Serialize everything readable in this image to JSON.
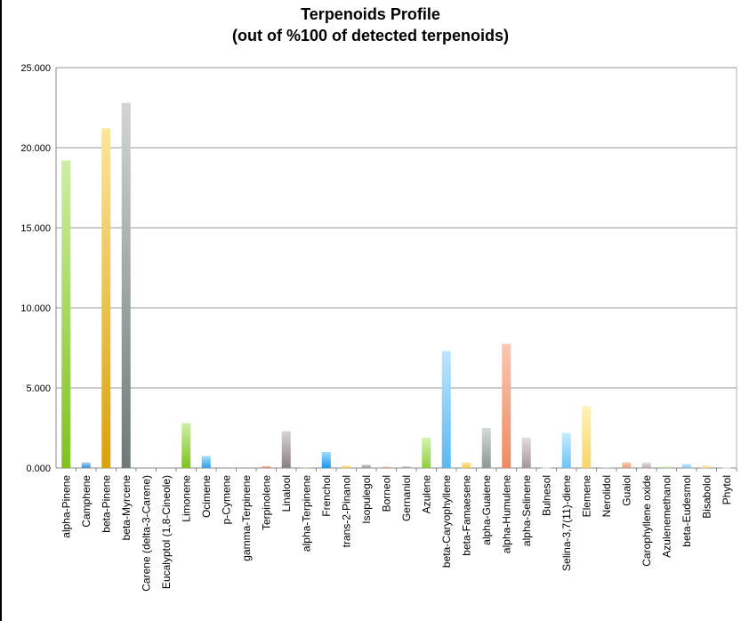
{
  "chart_data": {
    "type": "bar",
    "title_line1": "Terpenoids Profile",
    "title_line2": "(out of %100 of detected terpenoids)",
    "xlabel": "",
    "ylabel": "",
    "ylim": [
      0,
      25
    ],
    "yticks": [
      "0.000",
      "5.000",
      "10.000",
      "15.000",
      "20.000",
      "25.000"
    ],
    "grid": true,
    "legend": "none",
    "categories": [
      "alpha-Pinene",
      "Camphene",
      "beta-Pinene",
      "beta-Myrcene",
      "Carene (delta-3-Carene)",
      "Eucalyptol (1,8-Cineole)",
      "Limonene",
      "Ocimene",
      "p-Cymene",
      "gamma-Terpinene",
      "Terpinolene",
      "Linalool",
      "alpha-Terpinene",
      "Frenchol",
      "trans-2-Pinanol",
      "Isopulegol",
      "Borneol",
      "Gernaniol",
      "Azulene",
      "beta-Caryophyllene",
      "beta-Famaesene",
      "alpha-Guaiene",
      "alpha-Humulene",
      "alpha-Selinene",
      "Bulnesol",
      "Selina-3,7(11)-diene",
      "Elemene",
      "Nerolidol",
      "Guaiol",
      "Carophyllene oxide",
      "Azulenemethanol",
      "beta-Eudesmol",
      "Bisabolol",
      "Phytol"
    ],
    "values": [
      19.2,
      0.35,
      21.2,
      22.8,
      0,
      0,
      2.8,
      0.75,
      0,
      0,
      0.12,
      2.3,
      0.05,
      1.0,
      0.15,
      0.2,
      0.08,
      0.1,
      1.9,
      7.3,
      0.35,
      2.5,
      7.75,
      1.9,
      0.02,
      2.2,
      3.85,
      0.05,
      0.35,
      0.35,
      0.1,
      0.25,
      0.15,
      0.02
    ],
    "colors": [
      [
        "#cdeea5",
        "#7fc21f"
      ],
      [
        "#a9d6f5",
        "#3d8fcf"
      ],
      [
        "#fde49a",
        "#d9a20a"
      ],
      [
        "#d2d5d3",
        "#6f7a74"
      ],
      [
        "#ffffff",
        "#eeeeee"
      ],
      [
        "#ffffff",
        "#eeeeee"
      ],
      [
        "#cdeea5",
        "#7fc21f"
      ],
      [
        "#a9e0fb",
        "#2f9ee6"
      ],
      [
        "#ffffff",
        "#eeeeee"
      ],
      [
        "#ffffff",
        "#eeeeee"
      ],
      [
        "#f8c9b0",
        "#d98a6a"
      ],
      [
        "#dcd4d4",
        "#8b7f80"
      ],
      [
        "#d8f0c8",
        "#a9d78e"
      ],
      [
        "#9fdcff",
        "#1b96e6"
      ],
      [
        "#fde8a8",
        "#ecc659"
      ],
      [
        "#c9cfcc",
        "#949d98"
      ],
      [
        "#f8c9b0",
        "#e09a78"
      ],
      [
        "#d0d0d0",
        "#a0a0a0"
      ],
      [
        "#d6f3b0",
        "#8fd040"
      ],
      [
        "#bde6ff",
        "#5ab8f2"
      ],
      [
        "#ffe9a6",
        "#f2c94c"
      ],
      [
        "#d5dcd9",
        "#8c9892"
      ],
      [
        "#fcc7b0",
        "#ec8b62"
      ],
      [
        "#e6dcdc",
        "#a49697"
      ],
      [
        "#eeeeee",
        "#cccccc"
      ],
      [
        "#c7ecff",
        "#6cc3f6"
      ],
      [
        "#fff3b8",
        "#f6d66a"
      ],
      [
        "#e8e8e8",
        "#c0c0c0"
      ],
      [
        "#f8c9b0",
        "#e5a07f"
      ],
      [
        "#e8e2e2",
        "#b8aeae"
      ],
      [
        "#dff2cf",
        "#b3dc92"
      ],
      [
        "#c8e8ff",
        "#86c6ef"
      ],
      [
        "#ffeec0",
        "#f0d48a"
      ],
      [
        "#eeeeee",
        "#cccccc"
      ]
    ]
  }
}
